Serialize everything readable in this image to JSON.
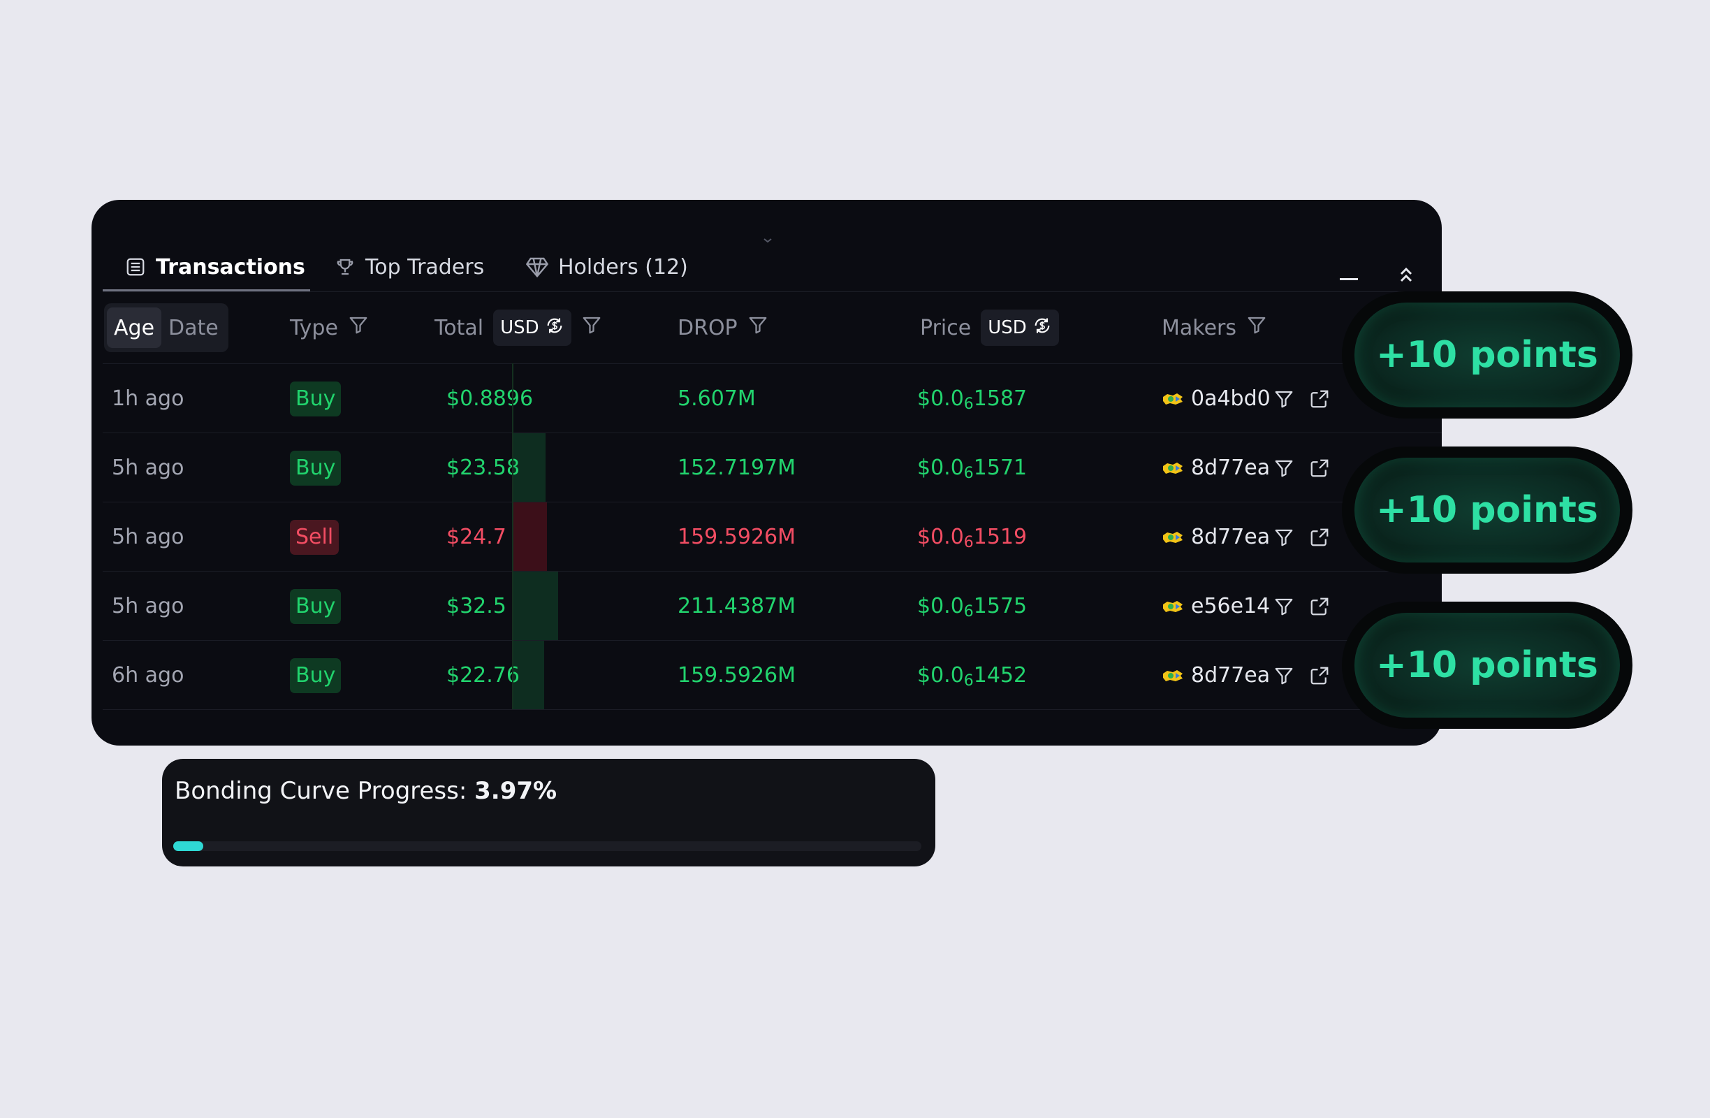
{
  "tabs": [
    {
      "label": "Transactions",
      "icon": "list-icon",
      "active": true
    },
    {
      "label": "Top Traders",
      "icon": "trophy-icon",
      "active": false
    },
    {
      "label": "Holders (12)",
      "icon": "diamond-icon",
      "active": false
    }
  ],
  "header": {
    "age": "Age",
    "date": "Date",
    "type": "Type",
    "total": "Total",
    "total_currency": "USD",
    "drop": "DROP",
    "price": "Price",
    "price_currency": "USD",
    "makers": "Makers"
  },
  "rows": [
    {
      "age": "1h ago",
      "type": "Buy",
      "total": "$0.8896",
      "amount": "5.607M",
      "price_prefix": "$0.0",
      "price_sub": "6",
      "price_rest": "1587",
      "maker": "0a4bd0",
      "volume_fraction": 0.0
    },
    {
      "age": "5h ago",
      "type": "Buy",
      "total": "$23.58",
      "amount": "152.7197M",
      "price_prefix": "$0.0",
      "price_sub": "6",
      "price_rest": "1571",
      "maker": "8d77ea",
      "volume_fraction": 0.6
    },
    {
      "age": "5h ago",
      "type": "Sell",
      "total": "$24.7",
      "amount": "159.5926M",
      "price_prefix": "$0.0",
      "price_sub": "6",
      "price_rest": "1519",
      "maker": "8d77ea",
      "volume_fraction": 0.63
    },
    {
      "age": "5h ago",
      "type": "Buy",
      "total": "$32.5",
      "amount": "211.4387M",
      "price_prefix": "$0.0",
      "price_sub": "6",
      "price_rest": "1575",
      "maker": "e56e14",
      "volume_fraction": 0.83
    },
    {
      "age": "6h ago",
      "type": "Buy",
      "total": "$22.76",
      "amount": "159.5926M",
      "price_prefix": "$0.0",
      "price_sub": "6",
      "price_rest": "1452",
      "maker": "8d77ea",
      "volume_fraction": 0.58
    }
  ],
  "points": [
    "+10 points",
    "+10 points",
    "+10 points"
  ],
  "bonding": {
    "label": "Bonding Curve Progress: ",
    "value": "3.97%",
    "progress": 0.0397
  },
  "colors": {
    "buy": "#22d46e",
    "sell": "#f24d63",
    "accent": "#2fd8d4",
    "points": "#2ee0a4"
  }
}
